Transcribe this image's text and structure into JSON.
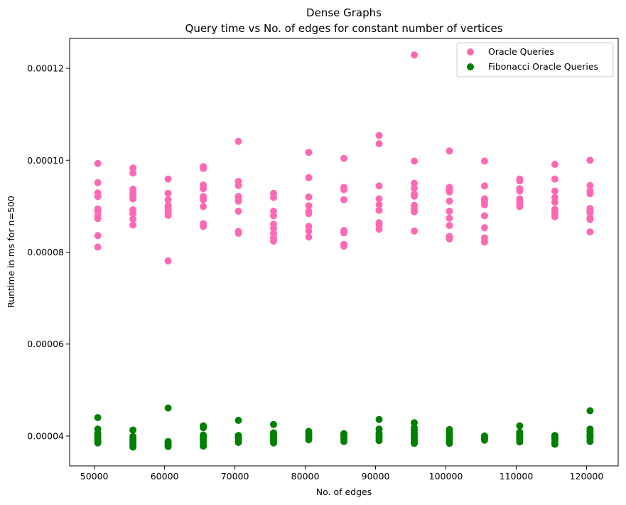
{
  "chart_data": {
    "type": "scatter",
    "title": "Dense Graphs",
    "subtitle": "Query time vs No. of edges for constant number of vertices",
    "xlabel": "No. of edges",
    "ylabel": "Runtime in ms for n=500",
    "xlim": [
      46500,
      124500
    ],
    "ylim": [
      3.35e-05,
      0.0001265
    ],
    "xticks": [
      50000,
      60000,
      70000,
      80000,
      90000,
      100000,
      110000,
      120000
    ],
    "xtick_labels": [
      "50000",
      "60000",
      "70000",
      "80000",
      "90000",
      "100000",
      "110000",
      "120000"
    ],
    "yticks": [
      4e-05,
      6e-05,
      8e-05,
      0.0001,
      0.00012
    ],
    "ytick_labels": [
      "0.00004",
      "0.00006",
      "0.00008",
      "0.00010",
      "0.00012"
    ],
    "grid": false,
    "legend_position": "top-right",
    "series": [
      {
        "name": "Oracle Queries",
        "color": "#ff69b4",
        "points": [
          [
            50500,
            9.93e-05
          ],
          [
            50500,
            9.51e-05
          ],
          [
            50500,
            9.29e-05
          ],
          [
            50500,
            9.21e-05
          ],
          [
            50500,
            8.94e-05
          ],
          [
            50500,
            8.89e-05
          ],
          [
            50500,
            8.79e-05
          ],
          [
            50500,
            8.73e-05
          ],
          [
            50500,
            8.36e-05
          ],
          [
            50500,
            8.11e-05
          ],
          [
            55500,
            9.83e-05
          ],
          [
            55500,
            9.72e-05
          ],
          [
            55500,
            9.37e-05
          ],
          [
            55500,
            9.29e-05
          ],
          [
            55500,
            9.23e-05
          ],
          [
            55500,
            9.16e-05
          ],
          [
            55500,
            8.92e-05
          ],
          [
            55500,
            8.84e-05
          ],
          [
            55500,
            8.72e-05
          ],
          [
            55500,
            8.59e-05
          ],
          [
            60500,
            9.59e-05
          ],
          [
            60500,
            9.28e-05
          ],
          [
            60500,
            9.14e-05
          ],
          [
            60500,
            9.02e-05
          ],
          [
            60500,
            8.98e-05
          ],
          [
            60500,
            8.91e-05
          ],
          [
            60500,
            8.86e-05
          ],
          [
            60500,
            8.8e-05
          ],
          [
            60500,
            7.81e-05
          ],
          [
            65500,
            9.86e-05
          ],
          [
            65500,
            9.82e-05
          ],
          [
            65500,
            9.46e-05
          ],
          [
            65500,
            9.38e-05
          ],
          [
            65500,
            9.21e-05
          ],
          [
            65500,
            9.14e-05
          ],
          [
            65500,
            8.99e-05
          ],
          [
            65500,
            8.62e-05
          ],
          [
            65500,
            8.56e-05
          ],
          [
            70500,
            0.0001041
          ],
          [
            70500,
            9.54e-05
          ],
          [
            70500,
            9.45e-05
          ],
          [
            70500,
            9.21e-05
          ],
          [
            70500,
            9.16e-05
          ],
          [
            70500,
            9.11e-05
          ],
          [
            70500,
            8.89e-05
          ],
          [
            70500,
            8.45e-05
          ],
          [
            70500,
            8.41e-05
          ],
          [
            75500,
            9.28e-05
          ],
          [
            75500,
            9.19e-05
          ],
          [
            75500,
            8.89e-05
          ],
          [
            75500,
            8.79e-05
          ],
          [
            75500,
            8.61e-05
          ],
          [
            75500,
            8.52e-05
          ],
          [
            75500,
            8.41e-05
          ],
          [
            75500,
            8.31e-05
          ],
          [
            75500,
            8.24e-05
          ],
          [
            80500,
            0.0001017
          ],
          [
            80500,
            9.62e-05
          ],
          [
            80500,
            9.2e-05
          ],
          [
            80500,
            9.01e-05
          ],
          [
            80500,
            8.89e-05
          ],
          [
            80500,
            8.84e-05
          ],
          [
            80500,
            8.56e-05
          ],
          [
            80500,
            8.46e-05
          ],
          [
            80500,
            8.33e-05
          ],
          [
            85500,
            0.0001004
          ],
          [
            85500,
            9.41e-05
          ],
          [
            85500,
            9.36e-05
          ],
          [
            85500,
            9.14e-05
          ],
          [
            85500,
            8.47e-05
          ],
          [
            85500,
            8.42e-05
          ],
          [
            85500,
            8.17e-05
          ],
          [
            85500,
            8.13e-05
          ],
          [
            90500,
            0.0001054
          ],
          [
            90500,
            0.0001036
          ],
          [
            90500,
            9.44e-05
          ],
          [
            90500,
            9.16e-05
          ],
          [
            90500,
            9.03e-05
          ],
          [
            90500,
            8.91e-05
          ],
          [
            90500,
            8.64e-05
          ],
          [
            90500,
            8.59e-05
          ],
          [
            90500,
            8.5e-05
          ],
          [
            95500,
            0.0001229
          ],
          [
            95500,
            9.98e-05
          ],
          [
            95500,
            9.5e-05
          ],
          [
            95500,
            9.39e-05
          ],
          [
            95500,
            9.26e-05
          ],
          [
            95500,
            9.22e-05
          ],
          [
            95500,
            9.02e-05
          ],
          [
            95500,
            8.95e-05
          ],
          [
            95500,
            8.88e-05
          ],
          [
            95500,
            8.46e-05
          ],
          [
            100500,
            0.000102
          ],
          [
            100500,
            9.41e-05
          ],
          [
            100500,
            9.36e-05
          ],
          [
            100500,
            9.31e-05
          ],
          [
            100500,
            9.11e-05
          ],
          [
            100500,
            8.89e-05
          ],
          [
            100500,
            8.74e-05
          ],
          [
            100500,
            8.58e-05
          ],
          [
            100500,
            8.34e-05
          ],
          [
            100500,
            8.29e-05
          ],
          [
            105500,
            9.98e-05
          ],
          [
            105500,
            9.44e-05
          ],
          [
            105500,
            9.16e-05
          ],
          [
            105500,
            9.1e-05
          ],
          [
            105500,
            9.03e-05
          ],
          [
            105500,
            8.79e-05
          ],
          [
            105500,
            8.53e-05
          ],
          [
            105500,
            8.31e-05
          ],
          [
            105500,
            8.22e-05
          ],
          [
            110500,
            9.59e-05
          ],
          [
            110500,
            9.55e-05
          ],
          [
            110500,
            9.38e-05
          ],
          [
            110500,
            9.33e-05
          ],
          [
            110500,
            9.16e-05
          ],
          [
            110500,
            9.11e-05
          ],
          [
            110500,
            9.06e-05
          ],
          [
            110500,
            8.99e-05
          ],
          [
            115500,
            9.91e-05
          ],
          [
            115500,
            9.59e-05
          ],
          [
            115500,
            9.33e-05
          ],
          [
            115500,
            9.19e-05
          ],
          [
            115500,
            9.09e-05
          ],
          [
            115500,
            8.93e-05
          ],
          [
            115500,
            8.86e-05
          ],
          [
            115500,
            8.81e-05
          ],
          [
            115500,
            8.77e-05
          ],
          [
            120500,
            0.0001
          ],
          [
            120500,
            9.45e-05
          ],
          [
            120500,
            9.33e-05
          ],
          [
            120500,
            9.27e-05
          ],
          [
            120500,
            8.95e-05
          ],
          [
            120500,
            8.91e-05
          ],
          [
            120500,
            8.86e-05
          ],
          [
            120500,
            8.75e-05
          ],
          [
            120500,
            8.71e-05
          ],
          [
            120500,
            8.44e-05
          ]
        ]
      },
      {
        "name": "Fibonacci Oracle Queries",
        "color": "#008000",
        "points": [
          [
            50500,
            4.4e-05
          ],
          [
            50500,
            4.15e-05
          ],
          [
            50500,
            4.06e-05
          ],
          [
            50500,
            3.99e-05
          ],
          [
            50500,
            3.94e-05
          ],
          [
            50500,
            3.89e-05
          ],
          [
            50500,
            3.85e-05
          ],
          [
            55500,
            4.13e-05
          ],
          [
            55500,
            3.99e-05
          ],
          [
            55500,
            3.93e-05
          ],
          [
            55500,
            3.87e-05
          ],
          [
            55500,
            3.81e-05
          ],
          [
            55500,
            3.76e-05
          ],
          [
            60500,
            4.61e-05
          ],
          [
            60500,
            3.88e-05
          ],
          [
            60500,
            3.85e-05
          ],
          [
            60500,
            3.82e-05
          ],
          [
            60500,
            3.79e-05
          ],
          [
            60500,
            3.77e-05
          ],
          [
            65500,
            4.22e-05
          ],
          [
            65500,
            4.18e-05
          ],
          [
            65500,
            4.02e-05
          ],
          [
            65500,
            3.98e-05
          ],
          [
            65500,
            3.93e-05
          ],
          [
            65500,
            3.88e-05
          ],
          [
            65500,
            3.81e-05
          ],
          [
            65500,
            3.78e-05
          ],
          [
            70500,
            4.34e-05
          ],
          [
            70500,
            4.01e-05
          ],
          [
            70500,
            3.98e-05
          ],
          [
            70500,
            3.95e-05
          ],
          [
            70500,
            3.89e-05
          ],
          [
            70500,
            3.86e-05
          ],
          [
            75500,
            4.25e-05
          ],
          [
            75500,
            4.07e-05
          ],
          [
            75500,
            4.03e-05
          ],
          [
            75500,
            3.98e-05
          ],
          [
            75500,
            3.94e-05
          ],
          [
            75500,
            3.89e-05
          ],
          [
            75500,
            3.85e-05
          ],
          [
            80500,
            4.1e-05
          ],
          [
            80500,
            4.06e-05
          ],
          [
            80500,
            4.01e-05
          ],
          [
            80500,
            3.96e-05
          ],
          [
            80500,
            3.92e-05
          ],
          [
            85500,
            4.05e-05
          ],
          [
            85500,
            4.02e-05
          ],
          [
            85500,
            3.98e-05
          ],
          [
            85500,
            3.93e-05
          ],
          [
            85500,
            3.88e-05
          ],
          [
            90500,
            4.36e-05
          ],
          [
            90500,
            4.15e-05
          ],
          [
            90500,
            4.06e-05
          ],
          [
            90500,
            4.01e-05
          ],
          [
            90500,
            3.96e-05
          ],
          [
            90500,
            3.9e-05
          ],
          [
            95500,
            4.29e-05
          ],
          [
            95500,
            4.18e-05
          ],
          [
            95500,
            4.12e-05
          ],
          [
            95500,
            4.06e-05
          ],
          [
            95500,
            4.01e-05
          ],
          [
            95500,
            3.96e-05
          ],
          [
            95500,
            3.91e-05
          ],
          [
            95500,
            3.87e-05
          ],
          [
            95500,
            3.84e-05
          ],
          [
            100500,
            4.14e-05
          ],
          [
            100500,
            4.09e-05
          ],
          [
            100500,
            4.03e-05
          ],
          [
            100500,
            3.98e-05
          ],
          [
            100500,
            3.94e-05
          ],
          [
            100500,
            3.89e-05
          ],
          [
            100500,
            3.84e-05
          ],
          [
            105500,
            4e-05
          ],
          [
            105500,
            3.97e-05
          ],
          [
            105500,
            3.94e-05
          ],
          [
            105500,
            3.91e-05
          ],
          [
            110500,
            4.22e-05
          ],
          [
            110500,
            4.08e-05
          ],
          [
            110500,
            4.04e-05
          ],
          [
            110500,
            4e-05
          ],
          [
            110500,
            3.95e-05
          ],
          [
            110500,
            3.91e-05
          ],
          [
            110500,
            3.87e-05
          ],
          [
            115500,
            4.01e-05
          ],
          [
            115500,
            3.98e-05
          ],
          [
            115500,
            3.95e-05
          ],
          [
            115500,
            3.91e-05
          ],
          [
            115500,
            3.86e-05
          ],
          [
            115500,
            3.82e-05
          ],
          [
            120500,
            4.55e-05
          ],
          [
            120500,
            4.15e-05
          ],
          [
            120500,
            4.1e-05
          ],
          [
            120500,
            4.04e-05
          ],
          [
            120500,
            4e-05
          ],
          [
            120500,
            3.95e-05
          ],
          [
            120500,
            3.88e-05
          ]
        ]
      }
    ]
  }
}
